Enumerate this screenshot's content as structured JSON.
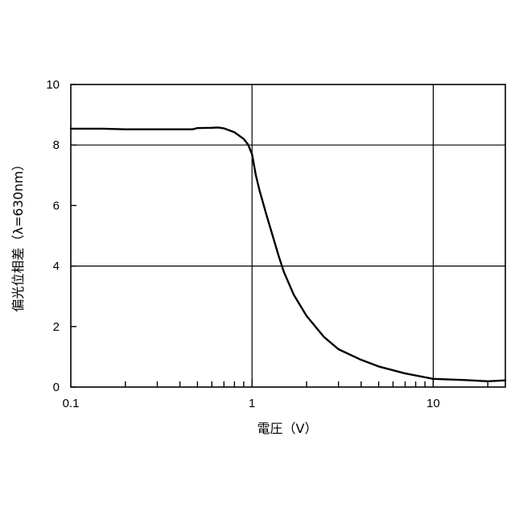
{
  "chart_data": {
    "type": "line",
    "title": "",
    "xlabel": "電圧（V）",
    "ylabel": "偏光位相差（λ=630nm）",
    "xscale": "log",
    "yscale": "linear",
    "xlim": [
      0.1,
      25
    ],
    "ylim": [
      0,
      10
    ],
    "xticks": [
      {
        "value": 0.1,
        "label": "0.1"
      },
      {
        "value": 1,
        "label": "1"
      },
      {
        "value": 10,
        "label": "10"
      }
    ],
    "yticks": [
      {
        "value": 0,
        "label": "0"
      },
      {
        "value": 2,
        "label": "2"
      },
      {
        "value": 4,
        "label": "4"
      },
      {
        "value": 6,
        "label": "6"
      },
      {
        "value": 8,
        "label": "8"
      },
      {
        "value": 10,
        "label": "10"
      }
    ],
    "grid": true,
    "xgrid": [
      1,
      10
    ],
    "ygrid": [
      4,
      8
    ],
    "legend": "none",
    "colors": {
      "line": "#000000",
      "axes": "#000000",
      "grid": "#000000",
      "background": "#ffffff"
    },
    "series": [
      {
        "x": [
          0.1,
          0.15,
          0.2,
          0.3,
          0.4,
          0.47,
          0.5,
          0.6,
          0.65,
          0.7,
          0.8,
          0.9,
          0.95,
          1.0,
          1.05,
          1.1,
          1.2,
          1.3,
          1.4,
          1.5,
          1.7,
          2.0,
          2.5,
          3.0,
          4.0,
          5.0,
          7.0,
          10,
          15,
          20,
          25
        ],
        "y": [
          8.54,
          8.54,
          8.52,
          8.52,
          8.52,
          8.52,
          8.56,
          8.57,
          8.58,
          8.55,
          8.42,
          8.2,
          8.02,
          7.7,
          7.0,
          6.5,
          5.7,
          5.0,
          4.35,
          3.8,
          3.05,
          2.35,
          1.65,
          1.25,
          0.9,
          0.68,
          0.45,
          0.27,
          0.23,
          0.19,
          0.22
        ]
      }
    ]
  }
}
